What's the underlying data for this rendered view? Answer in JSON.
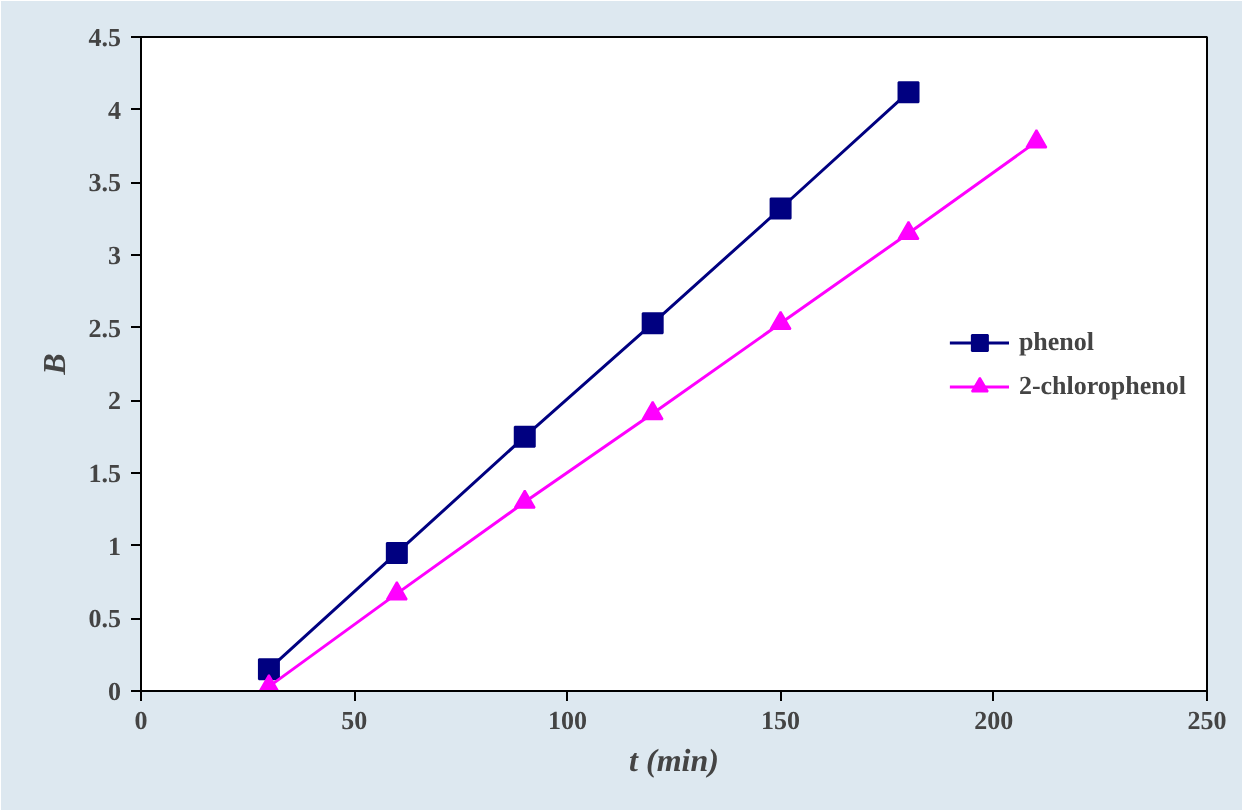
{
  "chart_data": {
    "type": "line",
    "xlabel": "t (min)",
    "ylabel": "B",
    "xlim": [
      0,
      250
    ],
    "xticks": [
      0,
      50,
      100,
      150,
      200,
      250
    ],
    "ylim": [
      0,
      4.5
    ],
    "yticks": [
      0,
      0.5,
      1,
      1.5,
      2,
      2.5,
      3,
      3.5,
      4,
      4.5
    ],
    "grid": false,
    "legend": "right",
    "series": [
      {
        "name": "phenol",
        "color": "#000080",
        "marker": "square",
        "x": [
          30,
          60,
          90,
          120,
          150,
          180
        ],
        "values": [
          0.15,
          0.95,
          1.75,
          2.53,
          3.32,
          4.12
        ]
      },
      {
        "name": "2-chlorophenol",
        "color": "#ff00ff",
        "marker": "triangle",
        "x": [
          30,
          60,
          90,
          120,
          150,
          180,
          210
        ],
        "values": [
          0.03,
          0.67,
          1.3,
          1.91,
          2.53,
          3.15,
          3.78
        ]
      }
    ]
  }
}
